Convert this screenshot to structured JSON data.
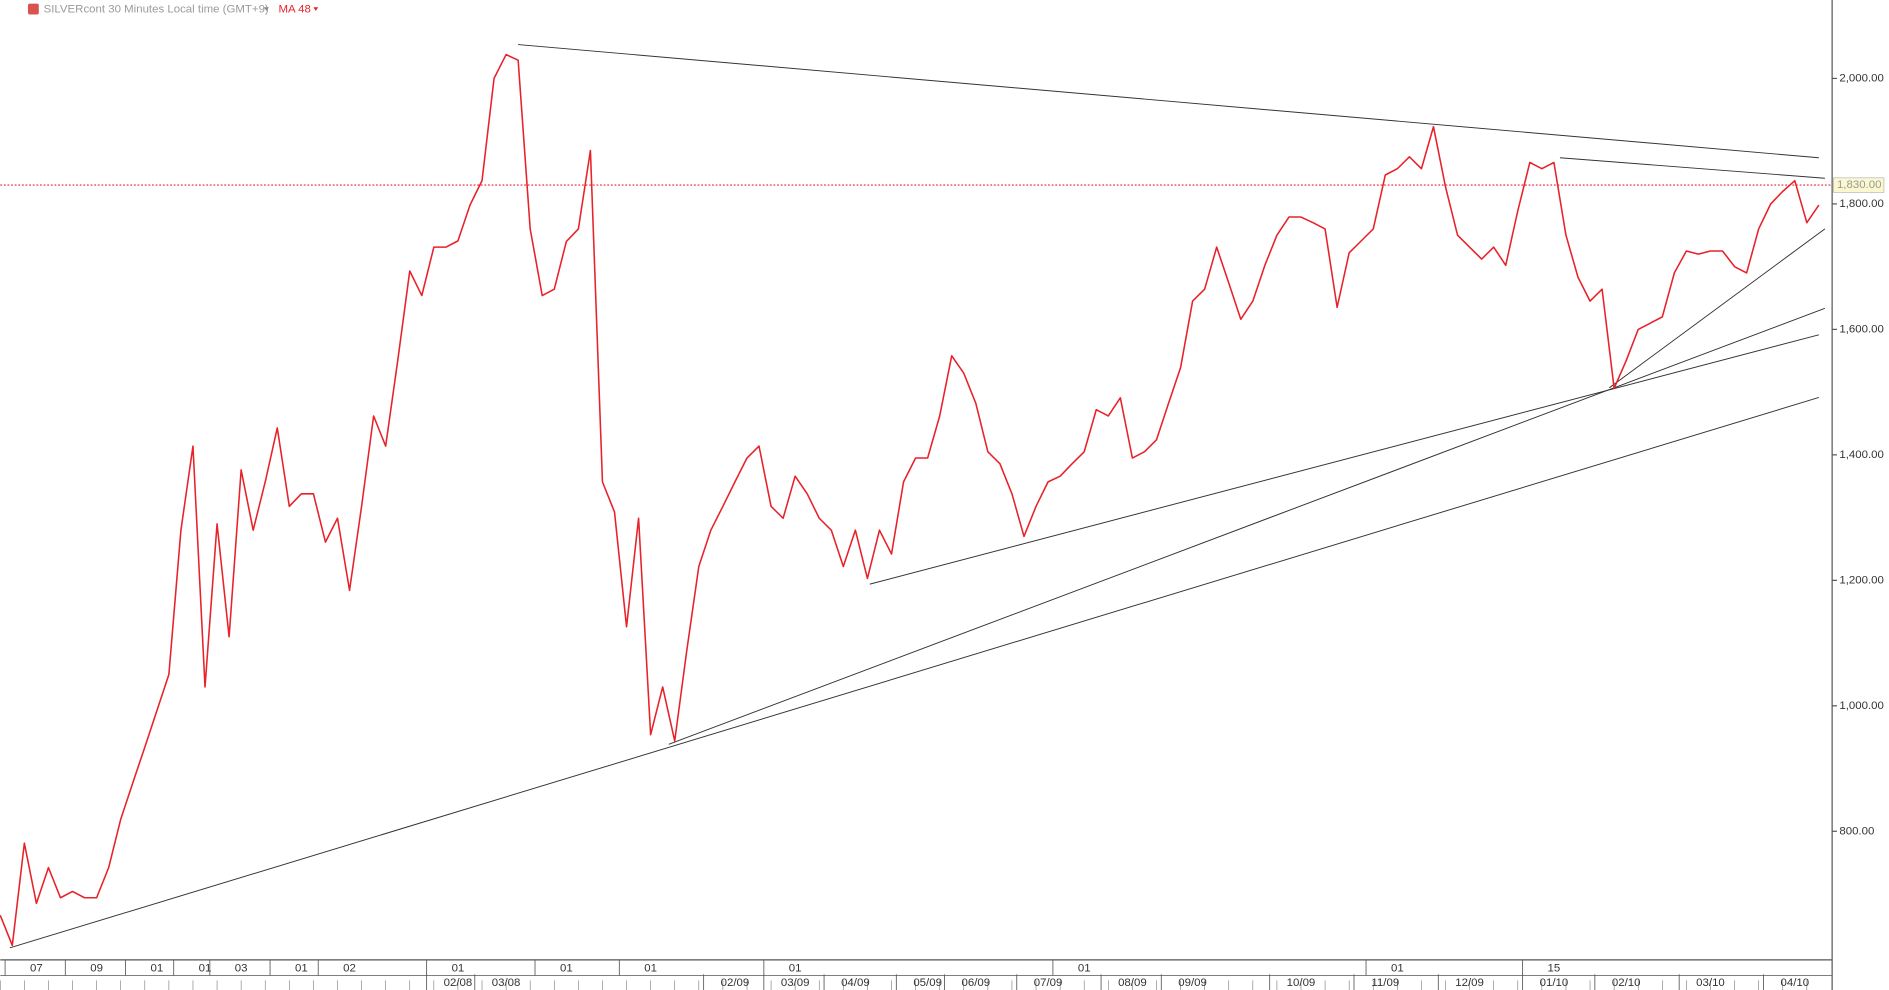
{
  "chart_data": {
    "type": "line",
    "title": "SILVERcont 30 Minutes Local time (GMT+9)",
    "grid": false,
    "ylim": [
      595,
      2125
    ],
    "yticks": [
      {
        "value": 800,
        "label": "800.00"
      },
      {
        "value": 1000,
        "label": "1,000.00"
      },
      {
        "value": 1200,
        "label": "1,200.00"
      },
      {
        "value": 1400,
        "label": "1,400.00"
      },
      {
        "value": 1600,
        "label": "1,600.00"
      },
      {
        "value": 1800,
        "label": "1,800.00"
      },
      {
        "value": 2000,
        "label": "2,000.00"
      }
    ],
    "last_price": 1830,
    "last_price_label": "1,830.00",
    "last_price_color": "#e8222a",
    "categories_major": [
      null,
      null,
      null,
      "07",
      null,
      null,
      null,
      null,
      "09",
      null,
      null,
      null,
      null,
      "01",
      null,
      null,
      null,
      "01",
      null,
      null,
      "03",
      null,
      null,
      null,
      null,
      "01",
      null,
      null,
      null,
      "02",
      null,
      null,
      null,
      null,
      null,
      null,
      null,
      null,
      "01",
      null,
      null,
      null,
      null,
      null,
      null,
      null,
      null,
      "01",
      null,
      null,
      null,
      null,
      null,
      null,
      "01",
      null,
      null,
      null,
      null,
      null,
      null,
      null,
      null,
      null,
      null,
      null,
      "01",
      null,
      null,
      null,
      null,
      null,
      null,
      null,
      null,
      null,
      null,
      null,
      null,
      null,
      null,
      null,
      null,
      null,
      null,
      null,
      null,
      null,
      null,
      null,
      "01",
      null,
      null,
      null,
      null,
      null,
      null,
      null,
      null,
      null,
      null,
      null,
      null,
      null,
      null,
      null,
      null,
      null,
      null,
      null,
      null,
      null,
      null,
      null,
      null,
      null,
      "01",
      null,
      null,
      null,
      null,
      null,
      null,
      null,
      null,
      null,
      null,
      null,
      null,
      "15",
      null,
      null,
      null,
      null,
      null,
      null,
      null,
      null,
      null,
      null,
      null,
      null,
      null,
      null,
      null,
      null,
      null,
      null,
      null,
      null,
      null,
      null
    ],
    "categories": [
      null,
      null,
      null,
      null,
      null,
      null,
      null,
      null,
      null,
      null,
      null,
      null,
      null,
      null,
      null,
      null,
      null,
      null,
      null,
      null,
      null,
      null,
      null,
      null,
      null,
      null,
      null,
      null,
      null,
      null,
      null,
      null,
      null,
      null,
      null,
      null,
      null,
      null,
      "02/08",
      null,
      null,
      null,
      "03/08",
      null,
      null,
      null,
      null,
      null,
      null,
      null,
      null,
      null,
      null,
      null,
      null,
      null,
      null,
      null,
      null,
      null,
      null,
      "02/09",
      null,
      null,
      null,
      null,
      "03/09",
      null,
      null,
      null,
      null,
      "04/09",
      null,
      null,
      null,
      null,
      null,
      "05/09",
      null,
      null,
      null,
      "06/09",
      null,
      null,
      null,
      null,
      null,
      "07/09",
      null,
      null,
      null,
      null,
      null,
      null,
      "08/09",
      null,
      null,
      null,
      null,
      "09/09",
      null,
      null,
      null,
      null,
      null,
      null,
      null,
      null,
      "10/09",
      null,
      null,
      null,
      null,
      null,
      null,
      "11/09",
      null,
      null,
      null,
      null,
      null,
      null,
      "12/09",
      null,
      null,
      null,
      null,
      null,
      null,
      "01/10",
      null,
      null,
      null,
      null,
      null,
      "02/10",
      null,
      null,
      null,
      null,
      null,
      null,
      "03/10",
      null,
      null,
      null,
      null,
      null,
      null,
      "04/10",
      null,
      null
    ],
    "series": [
      {
        "name": "MA 48",
        "color": "#e8222a",
        "values": [
          666,
          618,
          781,
          685,
          742,
          694,
          704,
          694,
          694,
          742,
          819,
          877,
          934,
          992,
          1050,
          1280,
          1414,
          1030,
          1290,
          1110,
          1376,
          1280,
          1357,
          1443,
          1318,
          1338,
          1338,
          1261,
          1299,
          1184,
          1318,
          1462,
          1414,
          1550,
          1693,
          1654,
          1731,
          1731,
          1741,
          1798,
          1837,
          2000,
          2038,
          2029,
          1760,
          1654,
          1664,
          1740,
          1760,
          1885,
          1357,
          1309,
          1126,
          1299,
          954,
          1030,
          944,
          1088,
          1222,
          1280,
          1318,
          1357,
          1395,
          1414,
          1318,
          1299,
          1366,
          1338,
          1299,
          1280,
          1222,
          1280,
          1203,
          1280,
          1242,
          1357,
          1395,
          1395,
          1462,
          1558,
          1530,
          1482,
          1405,
          1386,
          1338,
          1270,
          1318,
          1357,
          1366,
          1386,
          1405,
          1472,
          1462,
          1491,
          1395,
          1405,
          1424,
          1482,
          1539,
          1645,
          1664,
          1731,
          1674,
          1616,
          1645,
          1702,
          1750,
          1779,
          1779,
          1770,
          1760,
          1635,
          1722,
          1741,
          1760,
          1846,
          1856,
          1875,
          1856,
          1923,
          1827,
          1750,
          1731,
          1712,
          1731,
          1702,
          1789,
          1866,
          1856,
          1866,
          1750,
          1683,
          1645,
          1664,
          1506,
          1550,
          1600,
          1610,
          1620,
          1690,
          1725,
          1720,
          1725,
          1725,
          1700,
          1690,
          1760,
          1800,
          1820,
          1837,
          1770,
          1798
        ]
      }
    ]
  }
}
